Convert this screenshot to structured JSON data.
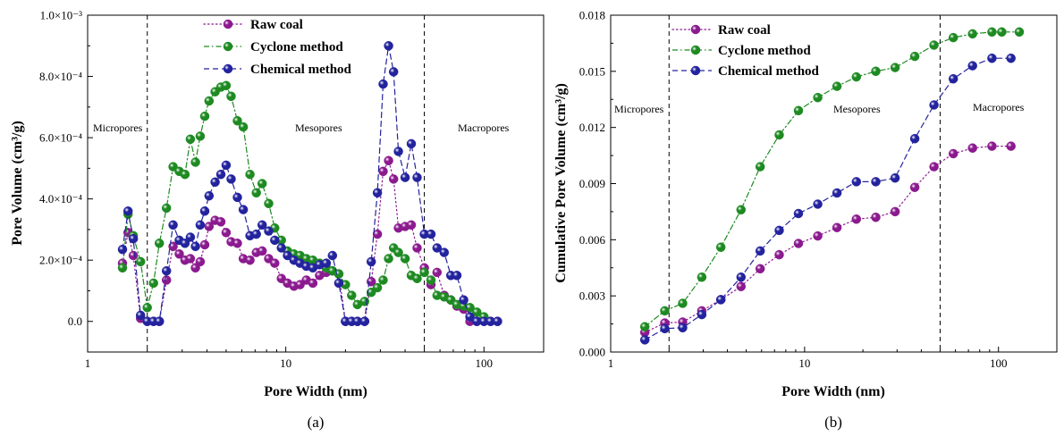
{
  "colors": {
    "raw_coal": "#8b1a8f",
    "cyclone": "#1e8a22",
    "chemical": "#23239e"
  },
  "chart_data": [
    {
      "type": "line",
      "panel_label": "(a)",
      "xlabel": "Pore Width (nm)",
      "ylabel": "Pore Volume (cm³/g)",
      "x_scale": "log",
      "xlim": [
        1,
        200
      ],
      "ylim": [
        -0.0001,
        0.001
      ],
      "x_ticks": [
        1,
        10,
        100
      ],
      "x_tick_labels": [
        "1",
        "10",
        "100"
      ],
      "y_ticks": [
        0,
        0.0002,
        0.0004,
        0.0006,
        0.0008,
        0.001
      ],
      "y_tick_labels": [
        "0.0",
        "2.0×10⁻⁴",
        "4.0×10⁻⁴",
        "6.0×10⁻⁴",
        "8.0×10⁻⁴",
        "1.0×10⁻³"
      ],
      "grid": false,
      "legend_position": "top-center",
      "boundaries": [
        2,
        50
      ],
      "regions": [
        "Micropores",
        "Mesopores",
        "Macropores"
      ],
      "series": [
        {
          "name": "Raw coal",
          "color_key": "raw_coal",
          "line_style": "dotted",
          "x": [
            1.5,
            1.6,
            1.7,
            1.85,
            2.0,
            2.15,
            2.3,
            2.5,
            2.7,
            2.9,
            3.1,
            3.3,
            3.5,
            3.7,
            3.9,
            4.1,
            4.4,
            4.7,
            5.0,
            5.3,
            5.7,
            6.1,
            6.6,
            7.1,
            7.6,
            8.2,
            8.8,
            9.5,
            10.2,
            11.0,
            11.8,
            12.7,
            13.7,
            14.8,
            16.0,
            17.2,
            18.5,
            20,
            21.5,
            23,
            25,
            27,
            29,
            31,
            33,
            35,
            37,
            40,
            43,
            46,
            50,
            54,
            58,
            63,
            68,
            73,
            79,
            85,
            92,
            100,
            108,
            117
          ],
          "y": [
            0.00019,
            0.00029,
            0.000215,
            1e-05,
            0,
            0,
            0,
            0.000135,
            0.000245,
            0.00022,
            0.0002,
            0.000205,
            0.000175,
            0.000195,
            0.00025,
            0.00031,
            0.00033,
            0.000325,
            0.00029,
            0.00026,
            0.000255,
            0.000205,
            0.0002,
            0.000225,
            0.00023,
            0.000205,
            0.00019,
            0.00014,
            0.000125,
            0.000115,
            0.00012,
            0.000135,
            0.000125,
            0.00015,
            0.00016,
            0.000165,
            0.000155,
            0,
            0,
            0,
            0,
            0.00013,
            0.000285,
            0.00049,
            0.000525,
            0.000465,
            0.000305,
            0.00031,
            0.000315,
            0.00024,
            0.000175,
            0.00012,
            0.00016,
            8.5e-05,
            7e-05,
            5e-05,
            4e-05,
            0,
            0,
            0,
            0,
            0
          ]
        },
        {
          "name": "Cyclone method",
          "color_key": "cyclone",
          "line_style": "dash-dot",
          "x": [
            1.5,
            1.6,
            1.7,
            1.85,
            2.0,
            2.15,
            2.3,
            2.5,
            2.7,
            2.9,
            3.1,
            3.3,
            3.5,
            3.7,
            3.9,
            4.1,
            4.4,
            4.7,
            5.0,
            5.3,
            5.7,
            6.1,
            6.6,
            7.1,
            7.6,
            8.2,
            8.8,
            9.5,
            10.2,
            11.0,
            11.8,
            12.7,
            13.7,
            14.8,
            16.0,
            17.2,
            18.5,
            20,
            21.5,
            23,
            25,
            27,
            29,
            31,
            33,
            35,
            37,
            40,
            43,
            46,
            50,
            54,
            58,
            63,
            68,
            73,
            79,
            85,
            92,
            100
          ],
          "y": [
            0.000175,
            0.00035,
            0.00028,
            0.000195,
            4.5e-05,
            0.000125,
            0.000255,
            0.00037,
            0.000505,
            0.00049,
            0.00048,
            0.000595,
            0.00052,
            0.000605,
            0.00067,
            0.00072,
            0.00075,
            0.000765,
            0.00077,
            0.000735,
            0.000655,
            0.000635,
            0.00048,
            0.00042,
            0.00045,
            0.000385,
            0.000305,
            0.000265,
            0.00023,
            0.00022,
            0.000215,
            0.000205,
            0.0002,
            0.00019,
            0.000175,
            0.000165,
            0.000155,
            0.00012,
            8.5e-05,
            5.5e-05,
            6.5e-05,
            9.5e-05,
            0.00011,
            0.000135,
            0.000205,
            0.00024,
            0.000225,
            0.000205,
            0.00015,
            0.00014,
            0.00016,
            0.000135,
            8.5e-05,
            8e-05,
            7e-05,
            5.5e-05,
            5e-05,
            4.5e-05,
            3e-05,
            1.5e-05
          ]
        },
        {
          "name": "Chemical method",
          "color_key": "chemical",
          "line_style": "dashed",
          "x": [
            1.5,
            1.6,
            1.7,
            1.85,
            2.0,
            2.15,
            2.3,
            2.5,
            2.7,
            2.9,
            3.1,
            3.3,
            3.5,
            3.7,
            3.9,
            4.1,
            4.4,
            4.7,
            5.0,
            5.3,
            5.7,
            6.1,
            6.6,
            7.1,
            7.6,
            8.2,
            8.8,
            9.5,
            10.2,
            11.0,
            11.8,
            12.7,
            13.7,
            14.8,
            16.0,
            17.2,
            18.5,
            20,
            21.5,
            23,
            25,
            27,
            29,
            31,
            33,
            35,
            37,
            40,
            43,
            46,
            50,
            54,
            58,
            63,
            68,
            73,
            79,
            85,
            92,
            100,
            108,
            117
          ],
          "y": [
            0.000235,
            0.00036,
            0.00027,
            2e-05,
            0,
            0,
            0,
            0.000165,
            0.000315,
            0.000265,
            0.000255,
            0.000275,
            0.000245,
            0.000315,
            0.00036,
            0.00041,
            0.000455,
            0.00048,
            0.00051,
            0.000465,
            0.000405,
            0.000365,
            0.00028,
            0.000285,
            0.000315,
            0.000295,
            0.000265,
            0.00024,
            0.000215,
            0.0002,
            0.00019,
            0.00018,
            0.000175,
            0.000185,
            0.00019,
            0.000215,
            0.000125,
            0,
            0,
            0,
            0,
            0.000195,
            0.00042,
            0.000775,
            0.0009,
            0.000815,
            0.000555,
            0.00047,
            0.00058,
            0.00047,
            0.000285,
            0.000285,
            0.00024,
            0.000225,
            0.00015,
            0.00015,
            7e-05,
            1.5e-05,
            0,
            0,
            0,
            0
          ]
        }
      ]
    },
    {
      "type": "line",
      "panel_label": "(b)",
      "xlabel": "Pore Width (nm)",
      "ylabel": "Cumulative Pore Volume (cm³/g)",
      "x_scale": "log",
      "xlim": [
        1,
        200
      ],
      "ylim": [
        0,
        0.018
      ],
      "x_ticks": [
        1,
        10,
        100
      ],
      "x_tick_labels": [
        "1",
        "10",
        "100"
      ],
      "y_ticks": [
        0,
        0.003,
        0.006,
        0.009,
        0.012,
        0.015,
        0.018
      ],
      "y_tick_labels": [
        "0.000",
        "0.003",
        "0.006",
        "0.009",
        "0.012",
        "0.015",
        "0.018"
      ],
      "grid": false,
      "legend_position": "top-left",
      "boundaries": [
        2,
        50
      ],
      "regions": [
        "Micropores",
        "Mesopores",
        "Macropores"
      ],
      "series": [
        {
          "name": "Raw coal",
          "color_key": "raw_coal",
          "line_style": "dotted",
          "x": [
            1.5,
            1.9,
            2.35,
            2.95,
            3.7,
            4.7,
            5.9,
            7.4,
            9.3,
            11.7,
            14.7,
            18.5,
            23.3,
            29.3,
            37,
            46.5,
            58.5,
            73.5,
            92.5,
            116
          ],
          "y": [
            0.00105,
            0.00155,
            0.0016,
            0.0022,
            0.0028,
            0.0035,
            0.00445,
            0.0052,
            0.0058,
            0.0062,
            0.00665,
            0.0071,
            0.0072,
            0.0075,
            0.0088,
            0.0099,
            0.0106,
            0.0109,
            0.011,
            0.011
          ]
        },
        {
          "name": "Cyclone method",
          "color_key": "cyclone",
          "line_style": "dash-dot",
          "x": [
            1.5,
            1.9,
            2.35,
            2.95,
            3.7,
            4.7,
            5.9,
            7.4,
            9.3,
            11.7,
            14.7,
            18.5,
            23.3,
            29.3,
            37,
            46.5,
            58.5,
            73.5,
            92.5,
            104,
            128
          ],
          "y": [
            0.00135,
            0.0022,
            0.0026,
            0.004,
            0.0056,
            0.0076,
            0.0099,
            0.0116,
            0.0129,
            0.0136,
            0.0142,
            0.0147,
            0.015,
            0.0152,
            0.0158,
            0.0164,
            0.0168,
            0.017,
            0.0171,
            0.0171,
            0.0171
          ]
        },
        {
          "name": "Chemical method",
          "color_key": "chemical",
          "line_style": "dashed",
          "x": [
            1.5,
            1.9,
            2.35,
            2.95,
            3.7,
            4.7,
            5.9,
            7.4,
            9.3,
            11.7,
            14.7,
            18.5,
            23.3,
            29.3,
            37,
            46.5,
            58.5,
            73.5,
            92.5,
            116
          ],
          "y": [
            0.00065,
            0.00125,
            0.0013,
            0.002,
            0.0028,
            0.004,
            0.0054,
            0.0065,
            0.0074,
            0.0079,
            0.0085,
            0.0091,
            0.0091,
            0.0093,
            0.0114,
            0.0132,
            0.0146,
            0.0153,
            0.0157,
            0.0157
          ]
        }
      ]
    }
  ]
}
